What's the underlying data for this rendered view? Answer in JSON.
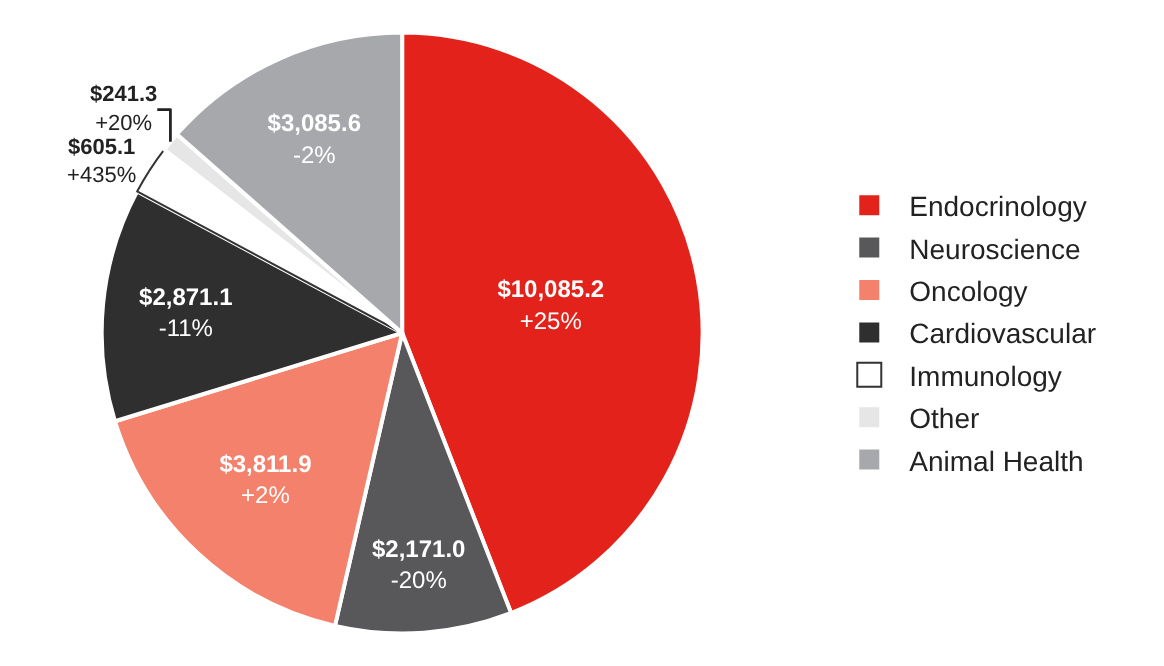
{
  "chart_data": {
    "type": "pie",
    "categories": [
      "Endocrinology",
      "Neuroscience",
      "Oncology",
      "Cardiovascular",
      "Immunology",
      "Other",
      "Animal Health"
    ],
    "values": [
      10085.2,
      2171.0,
      3811.9,
      2871.1,
      605.1,
      241.3,
      3085.6
    ],
    "colors": [
      "#e3231b",
      "#58585b",
      "#f4816c",
      "#2f2f2f",
      "#ffffff",
      "#e6e6e7",
      "#a7a8ab"
    ],
    "value_labels": [
      "$10,085.2\n+25%",
      "$2,171.0\n-20%",
      "$3,811.9\n+2%",
      "$2,871.1\n-11%",
      "$605.1\n+435%",
      "$241.3\n+20%",
      "$3,085.6\n-2%"
    ],
    "legend": "right"
  }
}
